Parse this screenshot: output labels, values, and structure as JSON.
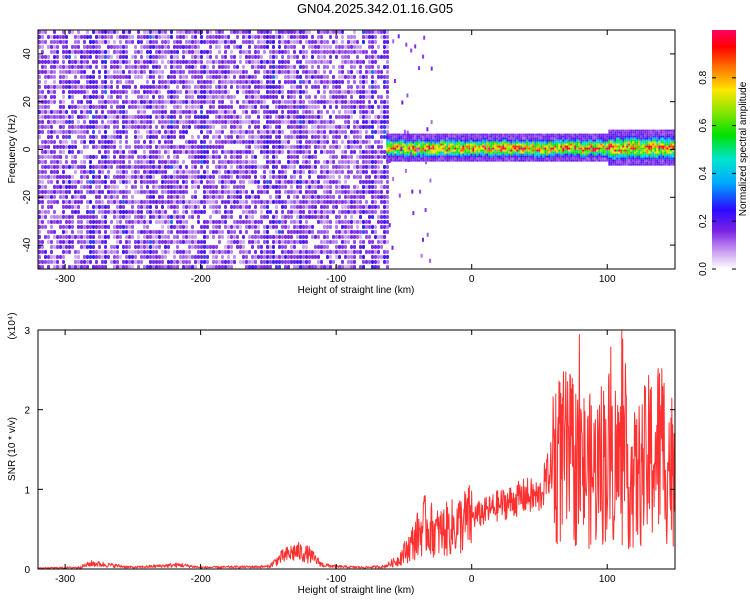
{
  "title": "GN04.2025.342.01.16.G05",
  "chart_data": [
    {
      "type": "heatmap",
      "xlabel": "Height of straight line (km)",
      "ylabel": "Frequency (Hz)",
      "xlim": [
        -320,
        150
      ],
      "ylim": [
        -50,
        50
      ],
      "xticks": [
        -300,
        -200,
        -100,
        0,
        100
      ],
      "yticks": [
        -40,
        -20,
        0,
        20,
        40
      ],
      "grid": false,
      "colorbar": {
        "label": "Normalized spectral amplitude",
        "range": [
          0,
          1
        ],
        "ticks": [
          0.0,
          0.2,
          0.4,
          0.6,
          0.8
        ],
        "colormap": "white-purple-blue-cyan-green-yellow-red-magenta"
      },
      "features": [
        {
          "name": "broadband noise",
          "x_range": [
            -320,
            -63
          ],
          "y_range": [
            -50,
            50
          ],
          "amplitude": 0.1
        },
        {
          "name": "narrowband signal near 0 Hz",
          "x_range": [
            -63,
            150
          ],
          "y_center": 1,
          "y_halfwidth": 4,
          "amplitude_max": 0.95
        }
      ]
    },
    {
      "type": "line",
      "xlabel": "Height of straight line (km)",
      "ylabel": "SNR (10 * v/v)",
      "y_multiplier": "(x10⁴)",
      "xlim": [
        -320,
        150
      ],
      "ylim": [
        0,
        3
      ],
      "xticks": [
        -300,
        -200,
        -100,
        0,
        100
      ],
      "yticks": [
        0,
        1,
        2,
        3
      ],
      "grid": false,
      "series": [
        {
          "color": "#ff3030",
          "x": [
            -320,
            -290,
            -280,
            -250,
            -215,
            -200,
            -150,
            -140,
            -130,
            -120,
            -110,
            -100,
            -80,
            -65,
            -55,
            -45,
            -35,
            -25,
            -10,
            0,
            10,
            20,
            30,
            40,
            50,
            60,
            70,
            80,
            90,
            100,
            110,
            120,
            130,
            140,
            150
          ],
          "y": [
            0.01,
            0.02,
            0.07,
            0.02,
            0.05,
            0.02,
            0.03,
            0.15,
            0.22,
            0.18,
            0.05,
            0.03,
            0.02,
            0.03,
            0.1,
            0.3,
            0.55,
            0.45,
            0.55,
            0.65,
            0.72,
            0.8,
            0.85,
            0.92,
            0.9,
            1.35,
            1.4,
            1.3,
            1.2,
            1.45,
            1.3,
            1.1,
            1.35,
            1.55,
            1.2
          ]
        }
      ]
    }
  ]
}
